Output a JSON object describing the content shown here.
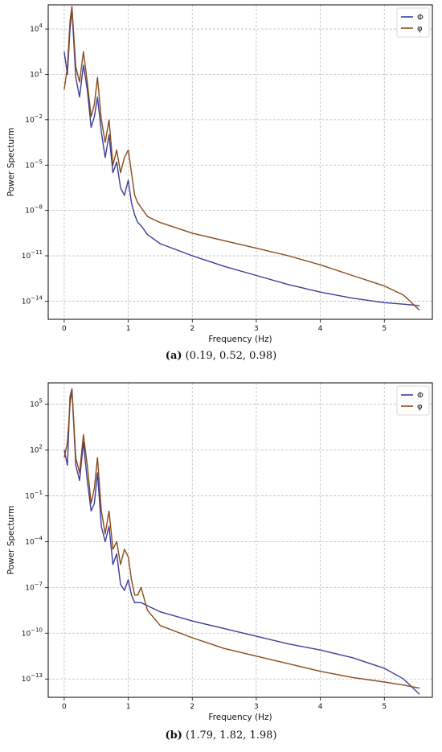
{
  "chart_data": [
    {
      "type": "line",
      "xlabel": "Frequency (Hz)",
      "ylabel": "Power Specturm",
      "yscale": "log",
      "xlim": [
        -0.25,
        5.75
      ],
      "ylim_exponents": [
        -15.2,
        5.6
      ],
      "xticks": [
        "0",
        "1",
        "2",
        "3",
        "4",
        "5"
      ],
      "yticks": [
        {
          "base": "10",
          "exp": "4",
          "e": 4
        },
        {
          "base": "10",
          "exp": "1",
          "e": 1
        },
        {
          "base": "10",
          "exp": "−2",
          "e": -2
        },
        {
          "base": "10",
          "exp": "−5",
          "e": -5
        },
        {
          "base": "10",
          "exp": "−8",
          "e": -8
        },
        {
          "base": "10",
          "exp": "−11",
          "e": -11
        },
        {
          "base": "10",
          "exp": "−14",
          "e": -14
        }
      ],
      "grid": true,
      "legend_position": "top-right",
      "series": [
        {
          "name": "Φ",
          "color": "#3b3c9e",
          "x": [
            0.0,
            0.05,
            0.09,
            0.12,
            0.18,
            0.24,
            0.3,
            0.36,
            0.42,
            0.47,
            0.52,
            0.58,
            0.64,
            0.7,
            0.76,
            0.82,
            0.88,
            0.94,
            1.0,
            1.05,
            1.1,
            1.15,
            1.2,
            1.3,
            1.5,
            2.0,
            2.5,
            3.0,
            3.5,
            4.0,
            4.5,
            5.0,
            5.3,
            5.55
          ],
          "logy": [
            2.5,
            1.0,
            4.0,
            5.3,
            0.8,
            -0.5,
            1.6,
            0.0,
            -2.5,
            -1.8,
            -0.5,
            -2.8,
            -4.5,
            -3.0,
            -5.5,
            -4.8,
            -6.5,
            -7.0,
            -6.0,
            -7.5,
            -8.3,
            -8.8,
            -9.0,
            -9.6,
            -10.2,
            -11.0,
            -11.7,
            -12.3,
            -12.9,
            -13.4,
            -13.8,
            -14.1,
            -14.2,
            -14.3
          ]
        },
        {
          "name": "φ",
          "color": "#8a4a1c",
          "x": [
            0.0,
            0.05,
            0.09,
            0.12,
            0.18,
            0.24,
            0.3,
            0.36,
            0.42,
            0.47,
            0.52,
            0.58,
            0.64,
            0.7,
            0.76,
            0.82,
            0.88,
            0.94,
            1.0,
            1.05,
            1.1,
            1.15,
            1.2,
            1.3,
            1.5,
            2.0,
            2.5,
            3.0,
            3.5,
            4.0,
            4.5,
            5.0,
            5.3,
            5.55
          ],
          "logy": [
            0.0,
            1.5,
            4.5,
            5.5,
            1.5,
            0.5,
            2.5,
            0.5,
            -1.8,
            -1.0,
            0.8,
            -2.0,
            -3.5,
            -2.0,
            -5.0,
            -4.0,
            -5.5,
            -4.5,
            -4.0,
            -5.5,
            -7.0,
            -7.5,
            -7.8,
            -8.4,
            -8.8,
            -9.5,
            -10.0,
            -10.5,
            -11.0,
            -11.6,
            -12.3,
            -13.0,
            -13.6,
            -14.6
          ]
        }
      ]
    },
    {
      "type": "line",
      "xlabel": "Frequency (Hz)",
      "ylabel": "Power Specturm",
      "yscale": "log",
      "xlim": [
        -0.25,
        5.75
      ],
      "ylim_exponents": [
        -14.2,
        6.4
      ],
      "xticks": [
        "0",
        "1",
        "2",
        "3",
        "4",
        "5"
      ],
      "yticks": [
        {
          "base": "10",
          "exp": "5",
          "e": 5
        },
        {
          "base": "10",
          "exp": "2",
          "e": 2
        },
        {
          "base": "10",
          "exp": "−1",
          "e": -1
        },
        {
          "base": "10",
          "exp": "−4",
          "e": -4
        },
        {
          "base": "10",
          "exp": "−7",
          "e": -7
        },
        {
          "base": "10",
          "exp": "−10",
          "e": -10
        },
        {
          "base": "10",
          "exp": "−13",
          "e": -13
        }
      ],
      "grid": true,
      "legend_position": "top-right",
      "series": [
        {
          "name": "Φ",
          "color": "#3b3c9e",
          "x": [
            0.0,
            0.05,
            0.09,
            0.12,
            0.18,
            0.24,
            0.3,
            0.36,
            0.42,
            0.47,
            0.52,
            0.58,
            0.64,
            0.7,
            0.76,
            0.82,
            0.88,
            0.94,
            1.0,
            1.05,
            1.1,
            1.15,
            1.2,
            1.3,
            1.5,
            2.0,
            2.5,
            3.0,
            3.5,
            4.0,
            4.5,
            5.0,
            5.3,
            5.55
          ],
          "logy": [
            2.0,
            1.0,
            5.5,
            6.0,
            1.0,
            0.0,
            2.5,
            0.0,
            -2.0,
            -1.5,
            0.5,
            -3.0,
            -4.0,
            -3.0,
            -5.5,
            -4.8,
            -6.8,
            -7.2,
            -6.5,
            -7.5,
            -8.0,
            -8.0,
            -8.0,
            -8.2,
            -8.6,
            -9.2,
            -9.7,
            -10.2,
            -10.7,
            -11.1,
            -11.6,
            -12.3,
            -13.0,
            -14.0
          ]
        },
        {
          "name": "φ",
          "color": "#8a4a1c",
          "x": [
            0.0,
            0.05,
            0.09,
            0.12,
            0.18,
            0.24,
            0.3,
            0.36,
            0.42,
            0.47,
            0.52,
            0.58,
            0.64,
            0.7,
            0.76,
            0.82,
            0.88,
            0.94,
            1.0,
            1.05,
            1.1,
            1.15,
            1.2,
            1.3,
            1.5,
            2.0,
            2.5,
            3.0,
            3.5,
            4.0,
            4.5,
            5.0,
            5.3,
            5.55
          ],
          "logy": [
            1.5,
            2.5,
            5.0,
            6.0,
            1.5,
            0.5,
            3.0,
            1.0,
            -1.5,
            -0.5,
            1.5,
            -2.0,
            -3.5,
            -2.0,
            -4.5,
            -4.0,
            -5.5,
            -4.5,
            -5.0,
            -6.5,
            -7.5,
            -7.5,
            -7.0,
            -8.5,
            -9.5,
            -10.3,
            -11.0,
            -11.5,
            -12.0,
            -12.5,
            -12.9,
            -13.2,
            -13.4,
            -13.6
          ]
        }
      ]
    }
  ],
  "captions": [
    {
      "label": "(a)",
      "text": " (0.19, 0.52, 0.98)"
    },
    {
      "label": "(b)",
      "text": " (1.79, 1.82, 1.98)"
    }
  ]
}
